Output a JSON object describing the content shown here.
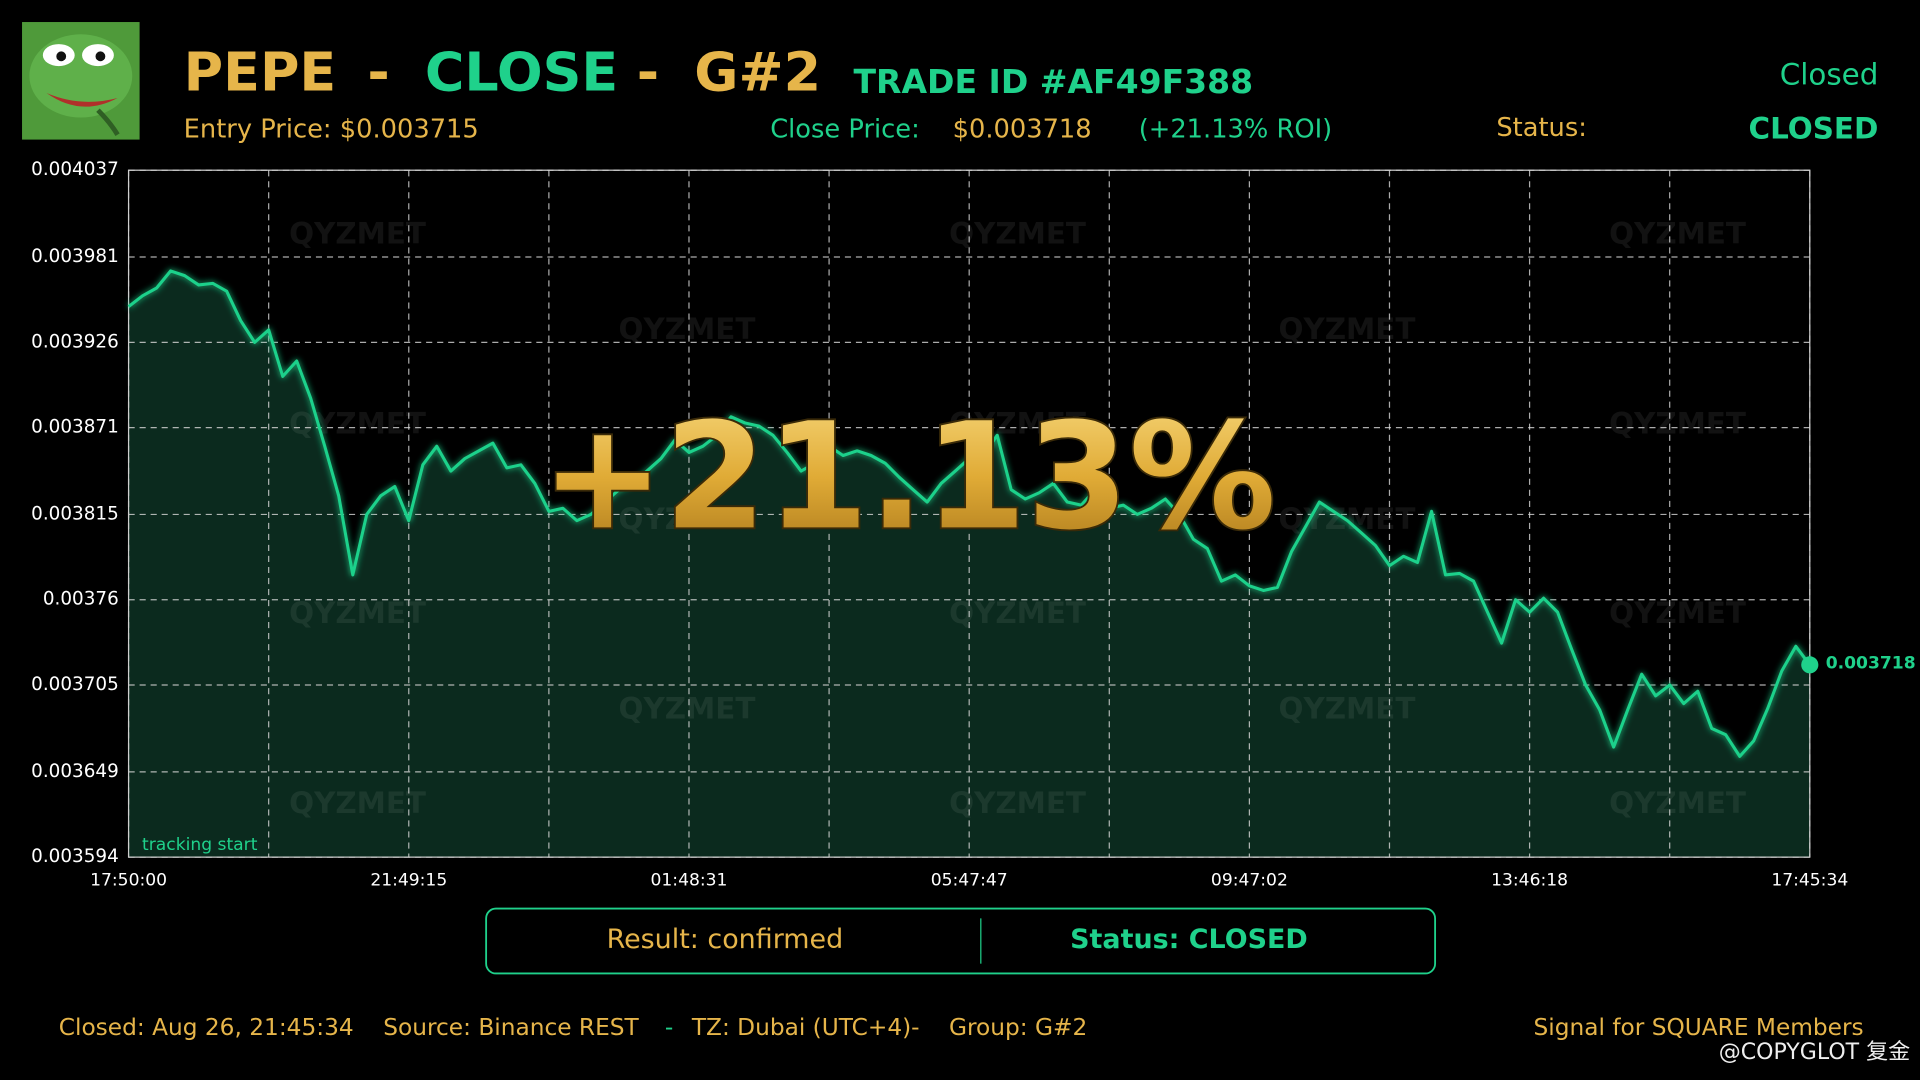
{
  "header": {
    "coin": "PEPE",
    "sep1": "-",
    "action": "CLOSE",
    "sep2": "-",
    "group": "G#2",
    "trade_id": "TRADE ID #AF49F388",
    "state": "Closed",
    "entry": "Entry Price: $0.003715",
    "close_label": "Close Price:",
    "close_price": "$0.003718",
    "roi": "(+21.13% ROI)",
    "status_label": "Status:",
    "status": "CLOSED"
  },
  "chart_data": {
    "type": "line",
    "annotation": "+21.13%",
    "start_label": "tracking start",
    "watermark": "QYZMET",
    "color": "#1fd18b",
    "grid": true,
    "xlim": [
      0,
      120
    ],
    "xticks": [
      {
        "value": 0,
        "label": "17:50:00"
      },
      {
        "value": 20,
        "label": "21:49:15"
      },
      {
        "value": 40,
        "label": "01:48:31"
      },
      {
        "value": 60,
        "label": "05:47:47"
      },
      {
        "value": 80,
        "label": "09:47:02"
      },
      {
        "value": 100,
        "label": "13:46:18"
      },
      {
        "value": 120,
        "label": "17:45:34"
      }
    ],
    "ylim": [
      0.003594,
      0.004037
    ],
    "yticks": [
      0.003594,
      0.003649,
      0.003705,
      0.00376,
      0.003815,
      0.003871,
      0.003926,
      0.003981,
      0.004037
    ],
    "values": [
      0.003949,
      0.003956,
      0.003961,
      0.003972,
      0.003969,
      0.003963,
      0.003964,
      0.003959,
      0.00394,
      0.003926,
      0.003934,
      0.003904,
      0.003914,
      0.00389,
      0.003859,
      0.003827,
      0.003776,
      0.003815,
      0.003827,
      0.003833,
      0.003811,
      0.003847,
      0.003859,
      0.003843,
      0.003851,
      0.003856,
      0.003861,
      0.003845,
      0.003847,
      0.003835,
      0.003817,
      0.003819,
      0.003811,
      0.003815,
      0.003823,
      0.003831,
      0.003835,
      0.003843,
      0.003851,
      0.003863,
      0.003855,
      0.003859,
      0.003866,
      0.003878,
      0.003874,
      0.003872,
      0.003866,
      0.003855,
      0.003843,
      0.003848,
      0.003859,
      0.003853,
      0.003856,
      0.003853,
      0.003848,
      0.003839,
      0.003831,
      0.003823,
      0.003835,
      0.003843,
      0.003851,
      0.003853,
      0.003866,
      0.003831,
      0.003825,
      0.003829,
      0.003835,
      0.003823,
      0.003821,
      0.003831,
      0.003819,
      0.003821,
      0.003815,
      0.003819,
      0.003825,
      0.003815,
      0.003799,
      0.003793,
      0.003772,
      0.003776,
      0.003769,
      0.003766,
      0.003768,
      0.003791,
      0.003807,
      0.003823,
      0.003817,
      0.003811,
      0.003803,
      0.003795,
      0.003782,
      0.003788,
      0.003784,
      0.003817,
      0.003776,
      0.003777,
      0.003772,
      0.003752,
      0.003732,
      0.00376,
      0.003752,
      0.003761,
      0.003752,
      0.003728,
      0.003705,
      0.003689,
      0.003665,
      0.003689,
      0.003712,
      0.003698,
      0.003705,
      0.003693,
      0.003701,
      0.003677,
      0.003673,
      0.003659,
      0.003669,
      0.00369,
      0.003714,
      0.00373,
      0.003718
    ]
  },
  "result": {
    "result": "Result: confirmed",
    "status": "Status: CLOSED"
  },
  "footer": {
    "closed": "Closed: Aug 26, 21:45:34",
    "source": "Source: Binance REST",
    "sep": "-",
    "tz": "TZ: Dubai (UTC+4)-",
    "group": "Group: G#2",
    "signal": "Signal for SQUARE Members",
    "credit": "@COPYGLOT 复金"
  }
}
